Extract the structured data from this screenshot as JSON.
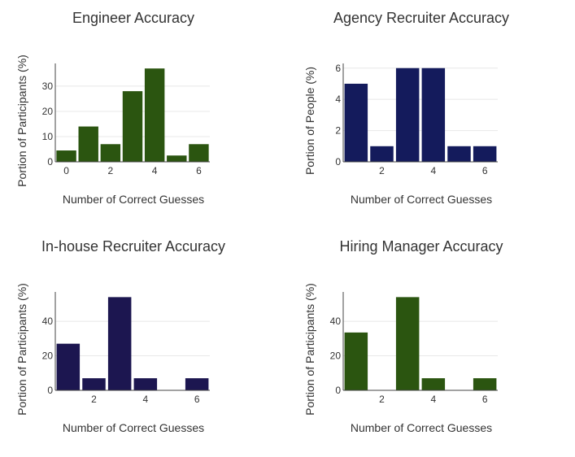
{
  "chart_data": [
    {
      "type": "bar",
      "title": "Engineer Accuracy",
      "xlabel": "Number of Correct Guesses",
      "ylabel": "Portion of Participants (%)",
      "x": [
        0,
        1,
        2,
        3,
        4,
        5,
        6
      ],
      "values": [
        4.5,
        14,
        7,
        28,
        37,
        2.5,
        7
      ],
      "xlim": [
        -0.5,
        6.5
      ],
      "ylim": [
        0,
        39
      ],
      "xticks": [
        0,
        2,
        4,
        6
      ],
      "yticks": [
        0,
        10,
        20,
        30
      ],
      "color": "#2b5510",
      "grid": true
    },
    {
      "type": "bar",
      "title": "Agency Recruiter Accuracy",
      "xlabel": "Number of Correct Guesses",
      "ylabel": "Portion of People (%)",
      "x": [
        1,
        2,
        3,
        4,
        5,
        6
      ],
      "values": [
        5,
        1,
        6,
        6,
        1,
        1
      ],
      "xlim": [
        0.5,
        6.5
      ],
      "ylim": [
        0,
        6.3
      ],
      "xticks": [
        2,
        4,
        6
      ],
      "yticks": [
        0,
        2,
        4,
        6
      ],
      "color": "#141b5c",
      "grid": true
    },
    {
      "type": "bar",
      "title": "In-house Recruiter Accuracy",
      "xlabel": "Number of Correct Guesses",
      "ylabel": "Portion of Participants (%)",
      "x": [
        1,
        2,
        3,
        4,
        5,
        6
      ],
      "values": [
        27,
        7,
        54,
        7,
        0,
        7
      ],
      "xlim": [
        0.5,
        6.5
      ],
      "ylim": [
        0,
        57
      ],
      "xticks": [
        2,
        4,
        6
      ],
      "yticks": [
        0,
        20,
        40
      ],
      "color": "#1c1650",
      "grid": true
    },
    {
      "type": "bar",
      "title": "Hiring Manager Accuracy",
      "xlabel": "Number of Correct Guesses",
      "ylabel": "Portion of Participants (%)",
      "x": [
        1,
        2,
        3,
        4,
        5,
        6
      ],
      "values": [
        33.5,
        0,
        54,
        7,
        0,
        7
      ],
      "xlim": [
        0.5,
        6.5
      ],
      "ylim": [
        0,
        57
      ],
      "xticks": [
        2,
        4,
        6
      ],
      "yticks": [
        0,
        20,
        40
      ],
      "color": "#2b5510",
      "grid": true
    }
  ]
}
